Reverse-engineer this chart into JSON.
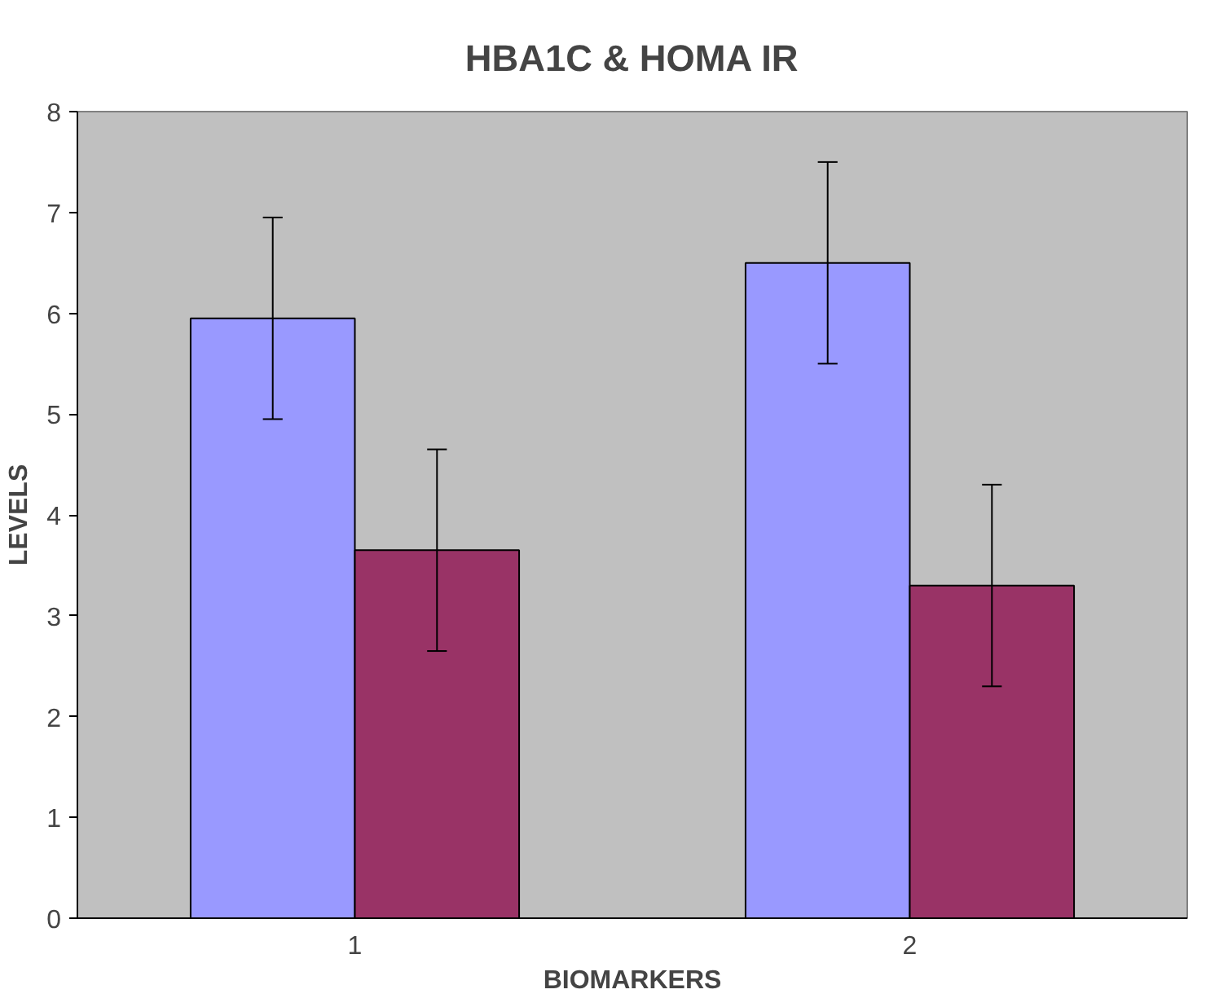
{
  "chart_data": {
    "type": "bar",
    "title": "HBA1C & HOMA IR",
    "xlabel": "BIOMARKERS",
    "ylabel": "LEVELS",
    "categories": [
      "1",
      "2"
    ],
    "series": [
      {
        "color": "#9999ff",
        "values": [
          5.95,
          6.5
        ],
        "errors": [
          1,
          1
        ]
      },
      {
        "color": "#993366",
        "values": [
          3.65,
          3.3
        ],
        "errors": [
          1,
          1
        ]
      }
    ],
    "ylim": [
      0,
      8
    ],
    "yticks": [
      0,
      1,
      2,
      3,
      4,
      5,
      6,
      7,
      8
    ],
    "grid": false
  }
}
